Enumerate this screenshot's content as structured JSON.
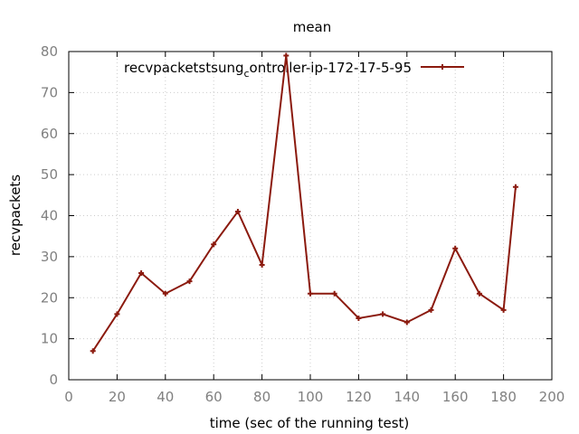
{
  "chart_data": {
    "type": "line",
    "title": "mean",
    "xlabel": "time (sec of the running test)",
    "ylabel": "recvpackets",
    "xlim": [
      0,
      200
    ],
    "ylim": [
      0,
      80
    ],
    "xticks": [
      0,
      20,
      40,
      60,
      80,
      100,
      120,
      140,
      160,
      180,
      200
    ],
    "yticks": [
      0,
      10,
      20,
      30,
      40,
      50,
      60,
      70,
      80
    ],
    "grid": true,
    "legend_position": "top",
    "series": [
      {
        "legend": {
          "prefix": "recvpacketstsung",
          "subscript": "c",
          "suffix": "ontroller-ip-172-17-5-95"
        },
        "color": "#8b1a0e",
        "x": [
          10,
          20,
          30,
          40,
          50,
          60,
          70,
          80,
          90,
          100,
          110,
          120,
          130,
          140,
          150,
          160,
          170,
          180,
          185
        ],
        "y": [
          7,
          16,
          26,
          21,
          24,
          33,
          41,
          28,
          79,
          21,
          21,
          15,
          16,
          14,
          17,
          32,
          21,
          17,
          47
        ]
      }
    ]
  }
}
